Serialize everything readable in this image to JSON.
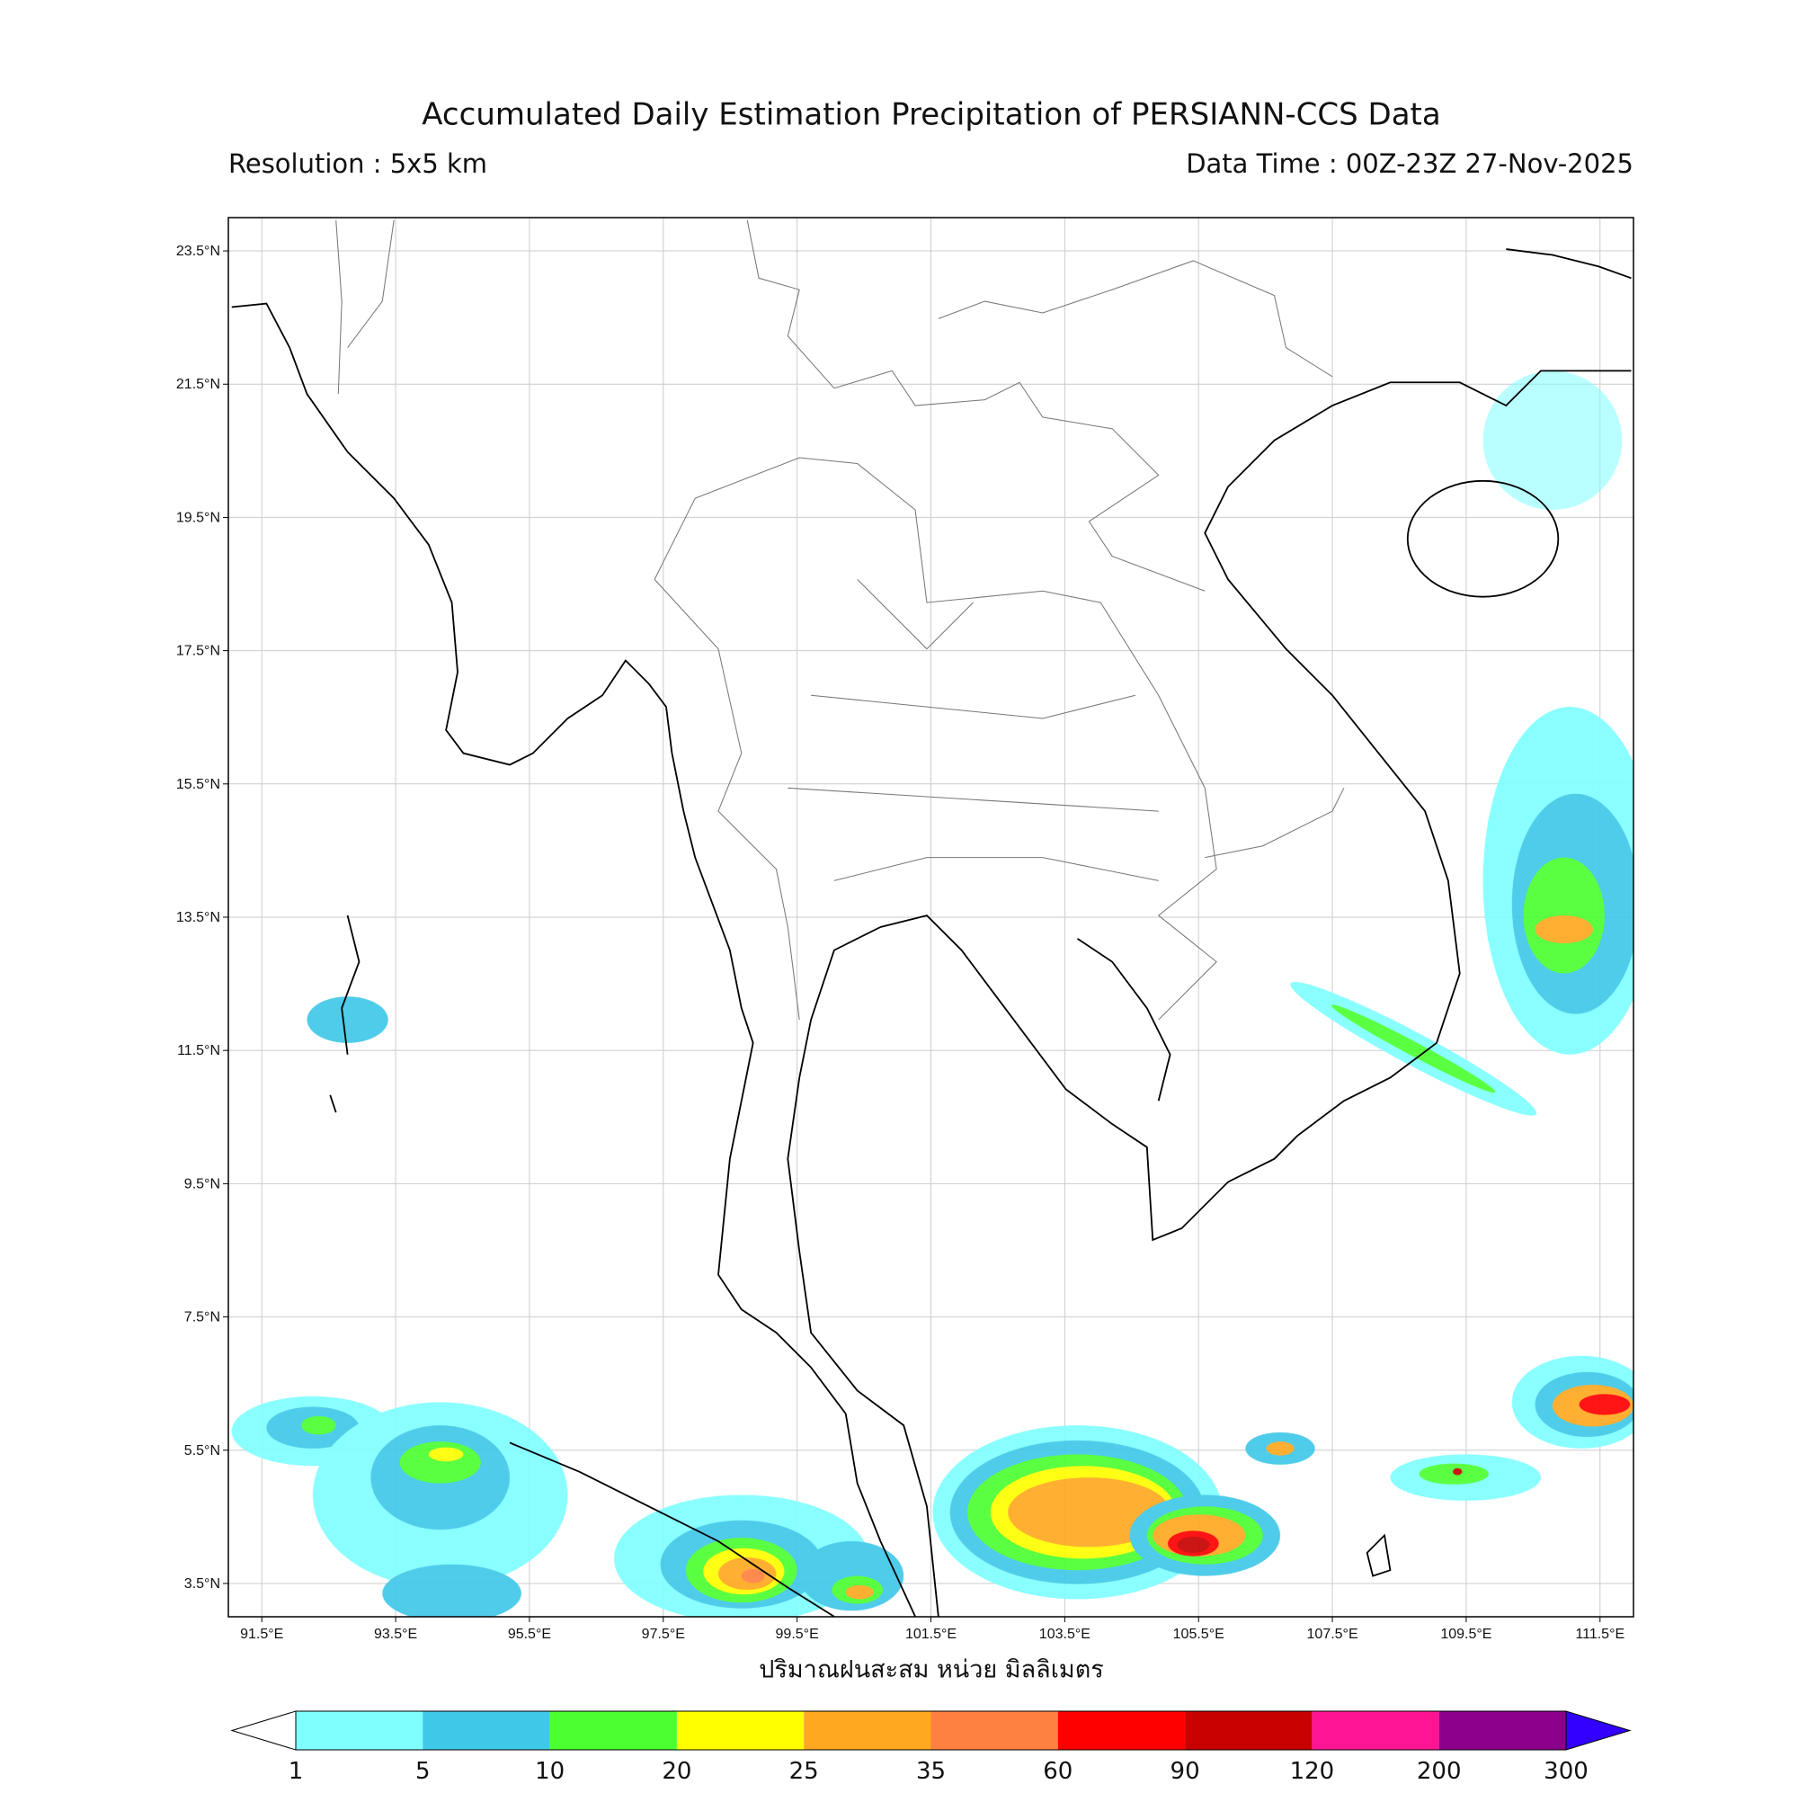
{
  "title": "Accumulated Daily Estimation Precipitation of PERSIANN-CCS Data",
  "resolution": "Resolution : 5x5 km",
  "data_time": "Data Time : 00Z-23Z 27-Nov-2025",
  "map": {
    "lon_lim": [
      91,
      112
    ],
    "lat_lim": [
      3,
      24
    ],
    "grid": true,
    "xticks": [
      {
        "value": 91.5,
        "label": "91.5°E"
      },
      {
        "value": 93.5,
        "label": "93.5°E"
      },
      {
        "value": 95.5,
        "label": "95.5°E"
      },
      {
        "value": 97.5,
        "label": "97.5°E"
      },
      {
        "value": 99.5,
        "label": "99.5°E"
      },
      {
        "value": 101.5,
        "label": "101.5°E"
      },
      {
        "value": 103.5,
        "label": "103.5°E"
      },
      {
        "value": 105.5,
        "label": "105.5°E"
      },
      {
        "value": 107.5,
        "label": "107.5°E"
      },
      {
        "value": 109.5,
        "label": "109.5°E"
      },
      {
        "value": 111.5,
        "label": "111.5°E"
      }
    ],
    "yticks": [
      {
        "value": 3.5,
        "label": "3.5°N"
      },
      {
        "value": 5.5,
        "label": "5.5°N"
      },
      {
        "value": 7.5,
        "label": "7.5°N"
      },
      {
        "value": 9.5,
        "label": "9.5°N"
      },
      {
        "value": 11.5,
        "label": "11.5°N"
      },
      {
        "value": 13.5,
        "label": "13.5°N"
      },
      {
        "value": 15.5,
        "label": "15.5°N"
      },
      {
        "value": 17.5,
        "label": "17.5°N"
      },
      {
        "value": 19.5,
        "label": "19.5°N"
      },
      {
        "value": 21.5,
        "label": "21.5°N"
      },
      {
        "value": 23.5,
        "label": "23.5°N"
      }
    ]
  },
  "colorbar": {
    "label": "ปริมาณฝนสะสม หน่วย มิลลิเมตร",
    "levels": [
      1,
      5,
      10,
      20,
      25,
      35,
      60,
      90,
      120,
      200,
      300
    ],
    "colors": [
      "#80ffff",
      "#40c8e8",
      "#4cff30",
      "#ffff00",
      "#ffa820",
      "#ff8040",
      "#ff0000",
      "#c80000",
      "#ff1493",
      "#8b008b"
    ],
    "under_color": "#ffffff",
    "over_color": "#3300ff"
  }
}
